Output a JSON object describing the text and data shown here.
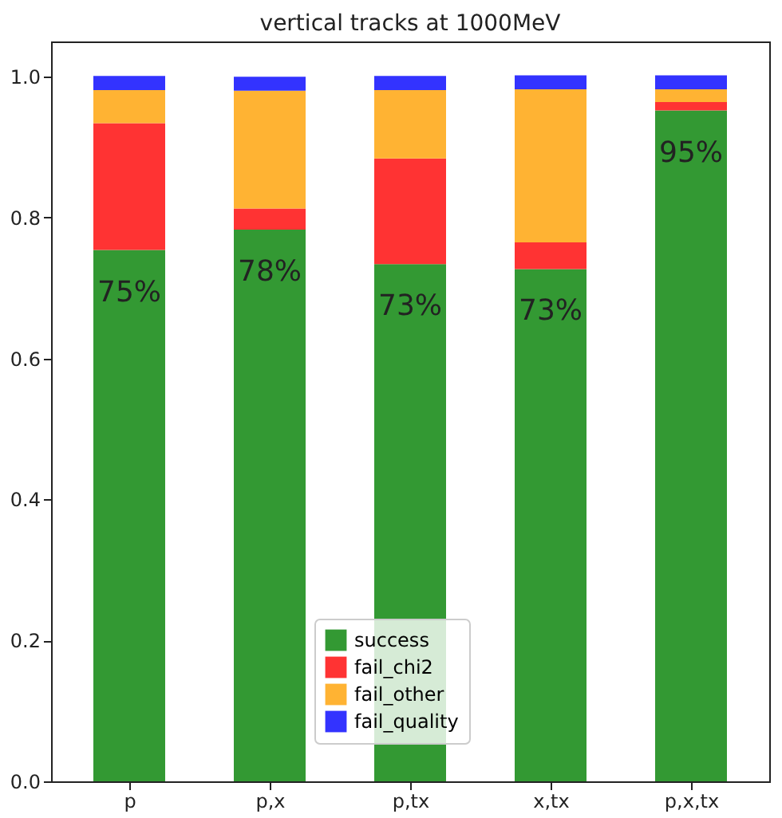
{
  "chart_data": {
    "type": "bar",
    "title": "vertical tracks at 1000MeV",
    "stacked": true,
    "categories": [
      "p",
      "p,x",
      "p,tx",
      "x,tx",
      "p,x,tx"
    ],
    "series": [
      {
        "name": "success",
        "color": "#339933",
        "values": [
          0.754,
          0.783,
          0.734,
          0.727,
          0.952
        ],
        "value_labels": [
          "75%",
          "78%",
          "73%",
          "73%",
          "95%"
        ]
      },
      {
        "name": "fail_chi2",
        "color": "#ff3333",
        "values": [
          0.18,
          0.03,
          0.15,
          0.038,
          0.012
        ]
      },
      {
        "name": "fail_other",
        "color": "#ffb333",
        "values": [
          0.047,
          0.167,
          0.097,
          0.217,
          0.018
        ]
      },
      {
        "name": "fail_quality",
        "color": "#3333ff",
        "values": [
          0.02,
          0.02,
          0.02,
          0.02,
          0.02
        ]
      }
    ],
    "ylim": [
      0,
      1.05
    ],
    "yticks": [
      {
        "value": 0,
        "label": "0.0"
      },
      0.2,
      0.4,
      0.6,
      0.8,
      {
        "value": 1,
        "label": "1.0"
      }
    ],
    "grid": false,
    "legend": "bottom"
  }
}
